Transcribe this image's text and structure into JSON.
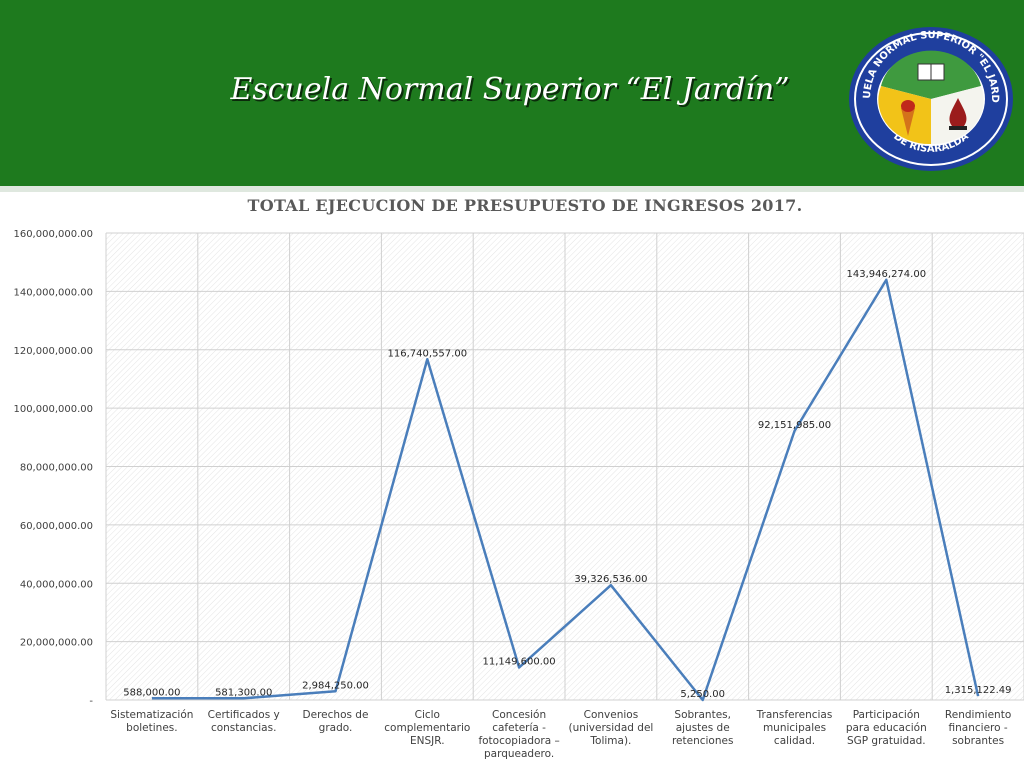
{
  "header": {
    "title": "Escuela Normal Superior “El Jardín”",
    "logo": {
      "top_text": "ESCUELA NORMAL SUPERIOR \"EL JARDÍN\"",
      "bottom_text": "DE RISARALDA"
    }
  },
  "colors": {
    "header_green": "#1e7a1e",
    "line": "#4a7ebb",
    "text": "#404040"
  },
  "chart_data": {
    "type": "line",
    "title": "TOTAL EJECUCION DE PRESUPUESTO DE INGRESOS 2017.",
    "categories": [
      [
        "Sistematización",
        "boletines."
      ],
      [
        "Certificados y",
        "constancias."
      ],
      [
        "Derechos de",
        "grado."
      ],
      [
        "Ciclo",
        "complementario",
        "ENSJR."
      ],
      [
        "Concesión",
        "cafetería -",
        "fotocopiadora –",
        "parqueadero."
      ],
      [
        "Convenios",
        "(universidad del",
        "Tolima)."
      ],
      [
        "Sobrantes,",
        "ajustes de",
        "retenciones"
      ],
      [
        "Transferencias",
        "municipales",
        "calidad."
      ],
      [
        "Participación",
        "para educación",
        "SGP gratuidad."
      ],
      [
        "Rendimiento",
        "financiero -",
        "sobrantes"
      ]
    ],
    "series": [
      {
        "values": [
          588000,
          581300,
          2984250,
          116740557,
          11149600,
          39326536,
          5250,
          92151985,
          143946274,
          1315122.49
        ]
      }
    ],
    "data_labels": [
      "588,000.00",
      "581,300.00",
      "2,984,250.00",
      "116,740,557.00",
      "11,149,600.00",
      "39,326,536.00",
      "5,250.00",
      "92,151,985.00",
      "143,946,274.00",
      "1,315,122.49"
    ],
    "y_ticks": [
      "-",
      "20,000,000.00",
      "40,000,000.00",
      "60,000,000.00",
      "80,000,000.00",
      "100,000,000.00",
      "120,000,000.00",
      "140,000,000.00",
      "160,000,000.00"
    ],
    "ylim": [
      0,
      160000000
    ],
    "grid": true,
    "legend": "none"
  }
}
